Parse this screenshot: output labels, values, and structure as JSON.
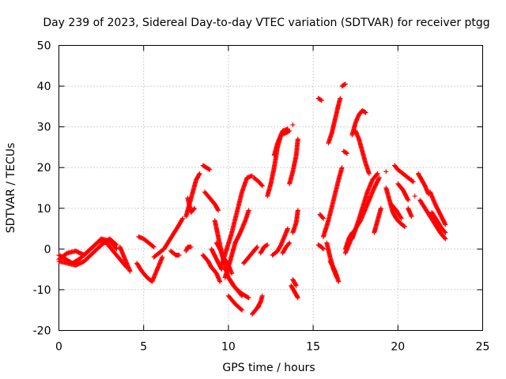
{
  "chart_data": {
    "type": "scatter",
    "title": "Day 239 of 2023, Sidereal Day-to-day VTEC variation (SDTVAR) for receiver ptgg",
    "xlabel": "GPS time / hours",
    "ylabel": "SDTVAR / TECUs",
    "xlim": [
      0,
      25
    ],
    "ylim": [
      -20,
      50
    ],
    "xticks": [
      "0",
      "5",
      "10",
      "15",
      "20",
      "25"
    ],
    "yticks": [
      "-20",
      "-10",
      "0",
      "10",
      "20",
      "30",
      "40",
      "50"
    ],
    "grid": true,
    "marker": "+",
    "color": "#ff0000",
    "tracks": [
      [
        [
          0.0,
          -1.5
        ],
        [
          0.4,
          -2.5
        ],
        [
          0.8,
          -3.5
        ],
        [
          1.2,
          -2.5
        ],
        [
          1.6,
          -1.0
        ],
        [
          2.0,
          0.5
        ],
        [
          2.4,
          2.0
        ],
        [
          2.8,
          1.5
        ],
        [
          3.2,
          -0.5
        ],
        [
          3.6,
          -2.5
        ],
        [
          4.0,
          -4.5
        ]
      ],
      [
        [
          0.0,
          -2.5
        ],
        [
          0.5,
          -1.0
        ],
        [
          1.0,
          -0.5
        ],
        [
          1.5,
          -1.5
        ],
        [
          2.0,
          0.5
        ],
        [
          2.5,
          2.5
        ],
        [
          3.0,
          2.0
        ],
        [
          3.4,
          0.0
        ]
      ],
      [
        [
          0.0,
          -3.0
        ],
        [
          0.5,
          -3.5
        ],
        [
          1.0,
          -4.0
        ],
        [
          1.5,
          -3.0
        ],
        [
          2.0,
          -1.0
        ],
        [
          2.5,
          1.0
        ],
        [
          3.0,
          2.5
        ],
        [
          3.4,
          1.0
        ]
      ],
      [
        [
          3.6,
          0.5
        ],
        [
          3.8,
          -1.5
        ],
        [
          4.0,
          -3.5
        ],
        [
          4.2,
          -5.5
        ]
      ],
      [
        [
          4.6,
          -3.5
        ],
        [
          4.9,
          -5.5
        ],
        [
          5.2,
          -7.0
        ],
        [
          5.5,
          -8.0
        ],
        [
          5.8,
          -5.0
        ],
        [
          6.1,
          -2.0
        ]
      ],
      [
        [
          4.7,
          3.0
        ],
        [
          5.0,
          2.5
        ],
        [
          5.3,
          1.5
        ],
        [
          5.6,
          0.5
        ]
      ],
      [
        [
          5.6,
          -2.0
        ],
        [
          5.9,
          -1.0
        ],
        [
          6.2,
          0.0
        ],
        [
          6.5,
          2.0
        ],
        [
          6.8,
          4.0
        ],
        [
          7.1,
          6.0
        ],
        [
          7.3,
          7.5
        ]
      ],
      [
        [
          6.6,
          -0.5
        ],
        [
          6.9,
          -1.5
        ],
        [
          7.1,
          -1.5
        ]
      ],
      [
        [
          7.5,
          -0.5
        ],
        [
          7.6,
          0.5
        ],
        [
          7.8,
          0.5
        ]
      ],
      [
        [
          7.5,
          8.0
        ],
        [
          7.7,
          11.0
        ],
        [
          7.9,
          14.0
        ],
        [
          8.1,
          17.0
        ],
        [
          8.3,
          18.5
        ]
      ],
      [
        [
          7.6,
          12.5
        ],
        [
          7.8,
          9.0
        ],
        [
          8.0,
          10.0
        ]
      ],
      [
        [
          8.5,
          20.5
        ],
        [
          8.7,
          20.0
        ],
        [
          8.9,
          19.5
        ]
      ],
      [
        [
          8.6,
          14.0
        ],
        [
          8.8,
          13.0
        ],
        [
          9.0,
          12.0
        ],
        [
          9.2,
          11.0
        ],
        [
          9.4,
          9.5
        ]
      ],
      [
        [
          8.5,
          -1.5
        ],
        [
          8.8,
          -3.0
        ],
        [
          9.0,
          -4.5
        ],
        [
          9.3,
          -6.0
        ],
        [
          9.5,
          -8.0
        ]
      ],
      [
        [
          9.0,
          0.0
        ],
        [
          9.3,
          -2.5
        ],
        [
          9.6,
          -5.0
        ]
      ],
      [
        [
          9.2,
          7.0
        ],
        [
          9.4,
          3.0
        ],
        [
          9.6,
          -1.0
        ],
        [
          9.8,
          -4.5
        ],
        [
          10.0,
          -7.0
        ],
        [
          10.3,
          -9.0
        ],
        [
          10.6,
          -10.5
        ],
        [
          10.8,
          -11.5
        ]
      ],
      [
        [
          9.3,
          1.5
        ],
        [
          9.5,
          0.0
        ],
        [
          9.7,
          -2.0
        ],
        [
          10.0,
          -4.0
        ],
        [
          10.2,
          -6.0
        ]
      ],
      [
        [
          9.6,
          -4.0
        ],
        [
          9.9,
          0.0
        ],
        [
          10.2,
          4.0
        ],
        [
          10.5,
          9.0
        ],
        [
          10.8,
          14.0
        ],
        [
          11.1,
          17.5
        ],
        [
          11.4,
          18.0
        ]
      ],
      [
        [
          9.8,
          -7.0
        ],
        [
          10.1,
          -3.0
        ],
        [
          10.4,
          1.5
        ],
        [
          10.7,
          4.0
        ],
        [
          11.0,
          7.0
        ],
        [
          11.2,
          9.5
        ]
      ],
      [
        [
          10.0,
          -11.5
        ],
        [
          10.4,
          -13.5
        ],
        [
          10.8,
          -15.0
        ]
      ],
      [
        [
          10.0,
          -7.0
        ],
        [
          10.4,
          -9.5
        ],
        [
          10.8,
          -11.0
        ],
        [
          11.2,
          -12.0
        ]
      ],
      [
        [
          10.9,
          -3.5
        ],
        [
          11.2,
          -2.0
        ],
        [
          11.5,
          -0.5
        ],
        [
          11.7,
          0.5
        ]
      ],
      [
        [
          11.5,
          17.5
        ],
        [
          11.8,
          16.5
        ],
        [
          12.0,
          15.5
        ]
      ],
      [
        [
          11.7,
          -14.5
        ],
        [
          11.9,
          -13.0
        ],
        [
          12.0,
          -11.5
        ]
      ],
      [
        [
          11.4,
          -16.0
        ],
        [
          11.6,
          -15.0
        ],
        [
          11.8,
          -14.0
        ]
      ],
      [
        [
          11.9,
          -1.0
        ],
        [
          12.1,
          0.5
        ],
        [
          12.3,
          1.0
        ]
      ],
      [
        [
          12.3,
          13.0
        ],
        [
          12.5,
          16.0
        ],
        [
          12.7,
          20.0
        ],
        [
          12.9,
          25.0
        ],
        [
          13.1,
          28.0
        ],
        [
          13.4,
          28.5
        ],
        [
          13.6,
          29.0
        ]
      ],
      [
        [
          12.7,
          23.0
        ],
        [
          12.9,
          26.0
        ],
        [
          13.2,
          29.0
        ],
        [
          13.5,
          29.5
        ]
      ],
      [
        [
          12.6,
          -1.5
        ],
        [
          12.9,
          -0.5
        ],
        [
          13.1,
          1.0
        ],
        [
          13.3,
          3.0
        ],
        [
          13.5,
          5.0
        ]
      ],
      [
        [
          13.2,
          -1.0
        ],
        [
          13.4,
          0.5
        ],
        [
          13.6,
          1.5
        ]
      ],
      [
        [
          13.8,
          30.5
        ]
      ],
      [
        [
          13.6,
          16.0
        ],
        [
          13.8,
          19.0
        ],
        [
          14.0,
          23.0
        ],
        [
          14.1,
          27.0
        ]
      ],
      [
        [
          13.8,
          4.0
        ],
        [
          14.0,
          6.5
        ],
        [
          14.1,
          9.5
        ]
      ],
      [
        [
          13.7,
          -9.0
        ],
        [
          13.9,
          -10.5
        ],
        [
          14.1,
          -12.0
        ]
      ],
      [
        [
          13.8,
          -7.5
        ],
        [
          14.0,
          -9.0
        ]
      ],
      [
        [
          15.3,
          37.0
        ],
        [
          15.5,
          36.5
        ]
      ],
      [
        [
          15.4,
          8.5
        ],
        [
          15.6,
          7.5
        ]
      ],
      [
        [
          15.3,
          1.0
        ],
        [
          15.5,
          0.5
        ],
        [
          15.6,
          0.0
        ]
      ],
      [
        [
          15.6,
          3.0
        ],
        [
          15.9,
          7.0
        ],
        [
          16.2,
          12.0
        ],
        [
          16.5,
          17.0
        ],
        [
          16.7,
          20.0
        ]
      ],
      [
        [
          15.8,
          1.5
        ],
        [
          16.0,
          -2.0
        ],
        [
          16.2,
          -5.0
        ],
        [
          16.4,
          -7.0
        ]
      ],
      [
        [
          15.9,
          26.0
        ],
        [
          16.1,
          28.5
        ],
        [
          16.3,
          32.0
        ],
        [
          16.5,
          35.5
        ],
        [
          16.6,
          37.0
        ]
      ],
      [
        [
          16.0,
          -3.0
        ],
        [
          16.3,
          -5.5
        ],
        [
          16.5,
          -8.0
        ]
      ],
      [
        [
          16.7,
          40.0
        ],
        [
          16.9,
          40.5
        ]
      ],
      [
        [
          16.8,
          24.0
        ],
        [
          17.0,
          23.5
        ]
      ],
      [
        [
          16.9,
          0.0
        ],
        [
          17.1,
          2.5
        ],
        [
          17.3,
          4.0
        ]
      ],
      [
        [
          16.9,
          -1.0
        ],
        [
          17.2,
          2.0
        ],
        [
          17.5,
          5.0
        ],
        [
          17.8,
          7.0
        ],
        [
          18.0,
          9.0
        ],
        [
          18.3,
          12.0
        ],
        [
          18.6,
          15.0
        ],
        [
          18.9,
          17.5
        ]
      ],
      [
        [
          17.3,
          2.5
        ],
        [
          17.6,
          6.0
        ],
        [
          17.9,
          10.0
        ],
        [
          18.2,
          14.0
        ],
        [
          18.5,
          17.0
        ],
        [
          18.8,
          18.5
        ]
      ],
      [
        [
          17.3,
          28.0
        ],
        [
          17.5,
          31.0
        ],
        [
          17.7,
          33.0
        ],
        [
          17.9,
          34.0
        ],
        [
          18.1,
          33.5
        ]
      ],
      [
        [
          17.5,
          29.0
        ],
        [
          17.7,
          27.0
        ],
        [
          17.9,
          24.0
        ],
        [
          18.1,
          21.0
        ],
        [
          18.3,
          18.5
        ]
      ],
      [
        [
          18.6,
          4.0
        ],
        [
          18.8,
          7.0
        ],
        [
          19.0,
          10.0
        ]
      ],
      [
        [
          19.3,
          19.0
        ]
      ],
      [
        [
          19.3,
          15.0
        ],
        [
          19.5,
          12.0
        ],
        [
          19.7,
          9.0
        ],
        [
          19.9,
          7.5
        ],
        [
          20.1,
          6.5
        ],
        [
          20.4,
          5.5
        ]
      ],
      [
        [
          19.6,
          11.0
        ],
        [
          19.9,
          9.5
        ],
        [
          20.2,
          7.5
        ]
      ],
      [
        [
          19.8,
          20.5
        ],
        [
          20.0,
          19.5
        ],
        [
          20.3,
          18.5
        ],
        [
          20.6,
          17.5
        ],
        [
          20.9,
          16.5
        ]
      ],
      [
        [
          20.0,
          16.0
        ],
        [
          20.3,
          14.5
        ],
        [
          20.6,
          12.0
        ]
      ],
      [
        [
          20.6,
          10.0
        ],
        [
          20.8,
          8.0
        ]
      ],
      [
        [
          20.8,
          17.0
        ]
      ],
      [
        [
          21.0,
          13.0
        ]
      ],
      [
        [
          21.2,
          18.5
        ],
        [
          21.4,
          17.0
        ],
        [
          21.6,
          15.5
        ],
        [
          21.8,
          13.5
        ]
      ],
      [
        [
          21.3,
          12.0
        ],
        [
          21.6,
          10.0
        ],
        [
          21.9,
          8.0
        ],
        [
          22.2,
          6.0
        ],
        [
          22.5,
          4.0
        ],
        [
          22.8,
          2.5
        ]
      ],
      [
        [
          21.9,
          14.0
        ],
        [
          22.2,
          11.0
        ],
        [
          22.5,
          8.5
        ],
        [
          22.8,
          6.0
        ]
      ],
      [
        [
          22.0,
          9.0
        ],
        [
          22.3,
          7.0
        ],
        [
          22.6,
          5.0
        ],
        [
          22.8,
          4.0
        ]
      ]
    ]
  }
}
